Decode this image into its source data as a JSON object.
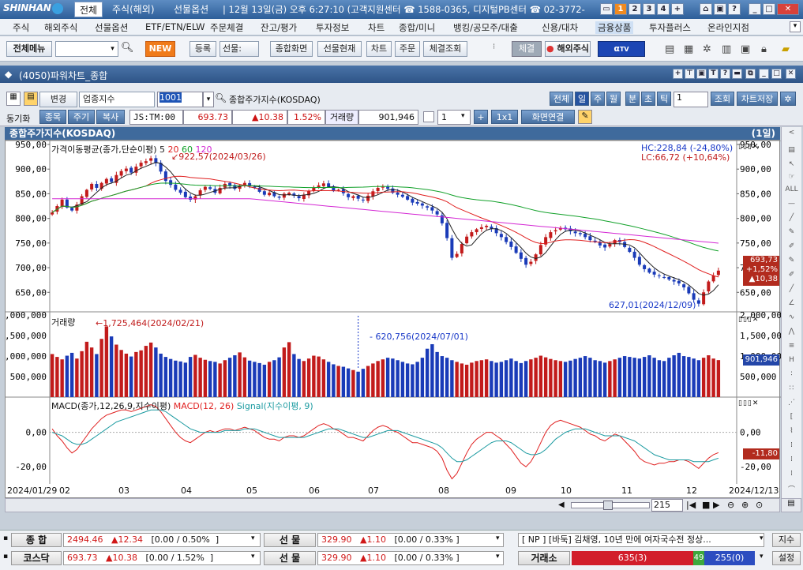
{
  "titlebar": {
    "logo": "SHINHAN",
    "tab_all": "전체",
    "tabs": [
      "주식(해외)",
      "선물옵션"
    ],
    "info": "| 12월 13일(금) 오후 6:27:10 (고객지원센터 ☎ 1588-0365, 디지털PB센터 ☎ 02-3772-",
    "win_nums": [
      "1",
      "2",
      "3",
      "4"
    ]
  },
  "menu": [
    "주식",
    "해외주식",
    "선물옵션",
    "ETF/ETN/ELW",
    "주문체결",
    "잔고/평가",
    "투자정보",
    "차트",
    "종합/미니",
    "뱅킹/공모주/대출",
    "신용/대차",
    "금융상품",
    "투자플러스",
    "온라인지점"
  ],
  "toolbar": {
    "menu_label": "전체메뉴",
    "new_label": "NEW",
    "register": "등록",
    "futures": "선물:",
    "buttons": [
      "종합화면",
      "선물현재",
      "차트",
      "주문",
      "체결조회"
    ],
    "conclude": "체결",
    "overseas": "해외주식",
    "tv": "TV"
  },
  "window": {
    "title": "(4050)파워차트_종합"
  },
  "controls": {
    "change": "변경",
    "sector": "업종지수",
    "code": "1001",
    "name": "종합주가지수(KOSDAQ)",
    "periods": [
      "전체",
      "일",
      "주",
      "월",
      "분",
      "초",
      "틱"
    ],
    "count": "1",
    "query": "조회",
    "save": "차트저장",
    "sync": "동기화",
    "sync_tabs": [
      "종목",
      "주기",
      "복사"
    ],
    "js_label": "JS:TM:00",
    "price": "693.73",
    "change_val": "▲10.38",
    "change_pct": "1.52%",
    "vol_label": "거래량",
    "vol": "901,946",
    "n": "1",
    "ratio": "1x1",
    "link": "화면연결"
  },
  "chart_header": {
    "title": "종합주가지수(KOSDAQ)",
    "period": "(1일)"
  },
  "chart_data": {
    "type": "candlestick",
    "title": "종합주가지수(KOSDAQ)",
    "x_ticks": [
      "2024/01/29",
      "02",
      "03",
      "04",
      "05",
      "06",
      "07",
      "08",
      "09",
      "10",
      "11",
      "12",
      "2024/12/13"
    ],
    "price_panel": {
      "legend": "가격이동평균(종가,단순이평) 5 20 60 120",
      "legend_ma": [
        "5",
        "20",
        "60",
        "120"
      ],
      "y_ticks": [
        "950,00",
        "900,00",
        "850,00",
        "800,00",
        "750,00",
        "700,00",
        "650,00"
      ],
      "ylim": [
        612,
        958
      ],
      "high_note": "922,57(2024/03/26)",
      "low_note": "627,01(2024/12/09)",
      "hc": "HC:228,84 (-24,80%)",
      "lc": "LC:66,72 (+10,64%)",
      "last_box": [
        "693,73",
        "+1,52%",
        "▲10,38"
      ],
      "closes": [
        812,
        825,
        838,
        822,
        816,
        828,
        845,
        858,
        870,
        862,
        872,
        880,
        874,
        888,
        896,
        901,
        893,
        905,
        913,
        916,
        922,
        912,
        895,
        876,
        868,
        858,
        852,
        843,
        838,
        845,
        857,
        864,
        860,
        852,
        862,
        870,
        866,
        860,
        867,
        872,
        866,
        862,
        854,
        848,
        852,
        845,
        842,
        850,
        852,
        846,
        841,
        848,
        856,
        862,
        867,
        871,
        864,
        856,
        858,
        851,
        843,
        845,
        840,
        837,
        846,
        855,
        862,
        864,
        860,
        852,
        848,
        844,
        838,
        832,
        830,
        826,
        822,
        816,
        808,
        790,
        760,
        720,
        728,
        748,
        763,
        772,
        778,
        782,
        785,
        779,
        770,
        762,
        752,
        742,
        730,
        718,
        706,
        712,
        727,
        746,
        762,
        772,
        776,
        781,
        778,
        774,
        770,
        768,
        762,
        756,
        752,
        745,
        741,
        748,
        756,
        752,
        742,
        732,
        720,
        706,
        697,
        690,
        686,
        683,
        680,
        676,
        672,
        668,
        660,
        648,
        635,
        627,
        650,
        672,
        684,
        694
      ]
    },
    "volume_panel": {
      "legend": "거래량",
      "y_ticks": [
        "2,000,000",
        "1,500,000",
        "1,000,000",
        "500,000"
      ],
      "ylim": [
        0,
        2060000
      ],
      "peak_note": "1,725,464(2024/02/21)",
      "mid_note": "620,756(2024/07/01)",
      "last_box": "901,946",
      "values": [
        1050000,
        980000,
        920000,
        1010000,
        1080000,
        940000,
        1120000,
        1350000,
        1210000,
        1050000,
        1420000,
        1725464,
        1480000,
        1280000,
        1150000,
        1060000,
        990000,
        1100000,
        1140000,
        1250000,
        1330000,
        1210000,
        1060000,
        980000,
        930000,
        890000,
        870000,
        840000,
        980000,
        1030000,
        960000,
        910000,
        880000,
        860000,
        820000,
        900000,
        960000,
        1020000,
        1090000,
        970000,
        890000,
        860000,
        830000,
        790000,
        860000,
        900000,
        970000,
        1210000,
        1340000,
        1050000,
        930000,
        880000,
        940000,
        1010000,
        990000,
        920000,
        860000,
        800000,
        760000,
        740000,
        700000,
        660000,
        620756,
        690000,
        760000,
        820000,
        880000,
        920000,
        960000,
        940000,
        900000,
        860000,
        820000,
        800000,
        860000,
        960000,
        1180000,
        1290000,
        1100000,
        1000000,
        960000,
        900000,
        860000,
        820000,
        790000,
        840000,
        880000,
        900000,
        920000,
        880000,
        840000,
        860000,
        900000,
        940000,
        880000,
        830000,
        880000,
        920000,
        960000,
        1010000,
        970000,
        930000,
        900000,
        880000,
        860000,
        890000,
        930000,
        960000,
        1000000,
        960000,
        900000,
        880000,
        840000,
        880000,
        920000,
        960000,
        1000000,
        980000,
        960000,
        940000,
        980000,
        1020000,
        960000,
        900000,
        880000,
        960000,
        1020000,
        1080000,
        1000000,
        980000,
        940000,
        900000,
        960000,
        1020000,
        940000,
        901946
      ]
    },
    "macd_panel": {
      "legend_a": "MACD(종가,12,26,9,지수이평)",
      "legend_b": "MACD(12, 26)",
      "legend_c": "Signal(지수이평, 9)",
      "y_ticks": [
        "0,00",
        "-20,00"
      ],
      "ylim": [
        -30,
        20
      ],
      "last_box": "-11,80",
      "macd": [
        2,
        -2,
        -5,
        -9,
        -12,
        -10,
        -6,
        -2,
        2,
        5,
        8,
        10,
        11,
        12,
        13,
        13,
        12,
        13,
        14,
        15,
        16,
        15,
        12,
        8,
        4,
        0,
        -3,
        -5,
        -6,
        -4,
        -2,
        0,
        1,
        0,
        1,
        2,
        2,
        1,
        2,
        3,
        2,
        1,
        -1,
        -3,
        -4,
        -4,
        -5,
        -3,
        -2,
        -2,
        -3,
        -2,
        0,
        2,
        4,
        5,
        4,
        2,
        1,
        -1,
        -3,
        -3,
        -4,
        -5,
        -2,
        1,
        3,
        4,
        3,
        1,
        0,
        -2,
        -4,
        -6,
        -6,
        -7,
        -8,
        -9,
        -11,
        -15,
        -22,
        -27,
        -24,
        -18,
        -12,
        -7,
        -4,
        -2,
        0,
        0,
        -2,
        -4,
        -7,
        -10,
        -14,
        -18,
        -20,
        -17,
        -12,
        -6,
        0,
        4,
        6,
        7,
        6,
        5,
        4,
        3,
        1,
        -1,
        -2,
        -4,
        -5,
        -3,
        -1,
        -2,
        -5,
        -8,
        -11,
        -15,
        -17,
        -18,
        -19,
        -18,
        -18,
        -17,
        -17,
        -16,
        -16,
        -17,
        -19,
        -21,
        -18,
        -15,
        -13,
        -11.8
      ],
      "signal": [
        0,
        -1,
        -2,
        -4,
        -6,
        -7,
        -7,
        -6,
        -4,
        -2,
        0,
        2,
        4,
        6,
        7,
        8,
        9,
        10,
        11,
        12,
        13,
        13,
        13,
        12,
        10,
        8,
        6,
        4,
        2,
        1,
        0,
        0,
        0,
        0,
        0,
        1,
        1,
        1,
        1,
        2,
        2,
        2,
        1,
        0,
        -1,
        -2,
        -3,
        -3,
        -3,
        -3,
        -3,
        -3,
        -2,
        -1,
        0,
        1,
        2,
        2,
        2,
        1,
        0,
        -1,
        -2,
        -3,
        -3,
        -2,
        -1,
        0,
        1,
        1,
        1,
        0,
        -1,
        -2,
        -3,
        -4,
        -5,
        -6,
        -7,
        -9,
        -12,
        -15,
        -17,
        -17,
        -16,
        -14,
        -12,
        -10,
        -8,
        -6,
        -5,
        -5,
        -5,
        -6,
        -8,
        -10,
        -12,
        -13,
        -13,
        -12,
        -10,
        -7,
        -4,
        -2,
        0,
        1,
        2,
        2,
        2,
        1,
        0,
        -1,
        -2,
        -2,
        -2,
        -2,
        -3,
        -4,
        -5,
        -7,
        -9,
        -11,
        -13,
        -14,
        -15,
        -16,
        -16,
        -16,
        -16,
        -16,
        -17,
        -17,
        -17,
        -17,
        -16,
        -15
      ]
    }
  },
  "status": {
    "row1": {
      "label1": "종  합",
      "v1": "2494.46",
      "c1": "▲12.34",
      "p1": "[0.00  / 0.50%",
      "label2": "선  물",
      "v2": "329.90",
      "c2": "▲1.10",
      "p2": "[0.00  / 0.33%",
      "news": "[ NP ] [바둑] 김채영, 10년 만에 여자국수전 정상...",
      "btn": "지수"
    },
    "row2": {
      "label1": "코스닥",
      "v1": "693.73",
      "c1": "▲10.38",
      "p1": "[0.00  / 1.52%",
      "label2": "선  물",
      "v2": "329.90",
      "c2": "▲1.10",
      "p2": "[0.00  / 0.33%",
      "label3": "거래소",
      "up": "635(3)",
      "flat": "49",
      "down": "255(0)",
      "btn": "설정"
    }
  },
  "scroll": {
    "zoom": "215"
  },
  "colors": {
    "up": "#c21b1b",
    "down": "#1a3bb8",
    "ma5": "#222222",
    "ma20": "#e02020",
    "ma60": "#12a12a",
    "ma120": "#d427d4"
  }
}
